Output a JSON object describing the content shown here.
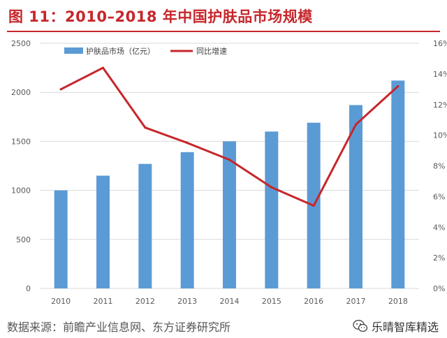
{
  "title": "图 11：2010–2018 年中国护肤品市场规模",
  "source": "数据来源：前瞻产业信息网、东方证券研究所",
  "watermark": {
    "text": "乐晴智库精选",
    "icon": "wechat-icon"
  },
  "colors": {
    "bar": "#5b9bd5",
    "line": "#c6262b",
    "title": "#c6262b",
    "grid": "#d9d9d9",
    "axis_text": "#595959"
  },
  "chart_data": {
    "type": "bar-line",
    "categories": [
      "2010",
      "2011",
      "2012",
      "2013",
      "2014",
      "2015",
      "2016",
      "2017",
      "2018"
    ],
    "series": [
      {
        "name": "护肤品市场（亿元）",
        "type": "bar",
        "axis": "left",
        "values": [
          1000,
          1150,
          1270,
          1390,
          1500,
          1600,
          1690,
          1870,
          2120
        ]
      },
      {
        "name": "同比增速",
        "type": "line",
        "axis": "right",
        "values": [
          13.0,
          14.4,
          10.5,
          9.5,
          8.4,
          6.6,
          5.4,
          10.7,
          13.2
        ]
      }
    ],
    "left_axis": {
      "min": 0,
      "max": 2500,
      "ticks": [
        "0",
        "500",
        "1000",
        "1500",
        "2000",
        "2500"
      ]
    },
    "right_axis": {
      "min": 0,
      "max": 16,
      "ticks": [
        "0%",
        "2%",
        "4%",
        "6%",
        "8%",
        "10%",
        "12%",
        "14%",
        "16%"
      ]
    },
    "grid": true,
    "legend_position": "top-center"
  }
}
